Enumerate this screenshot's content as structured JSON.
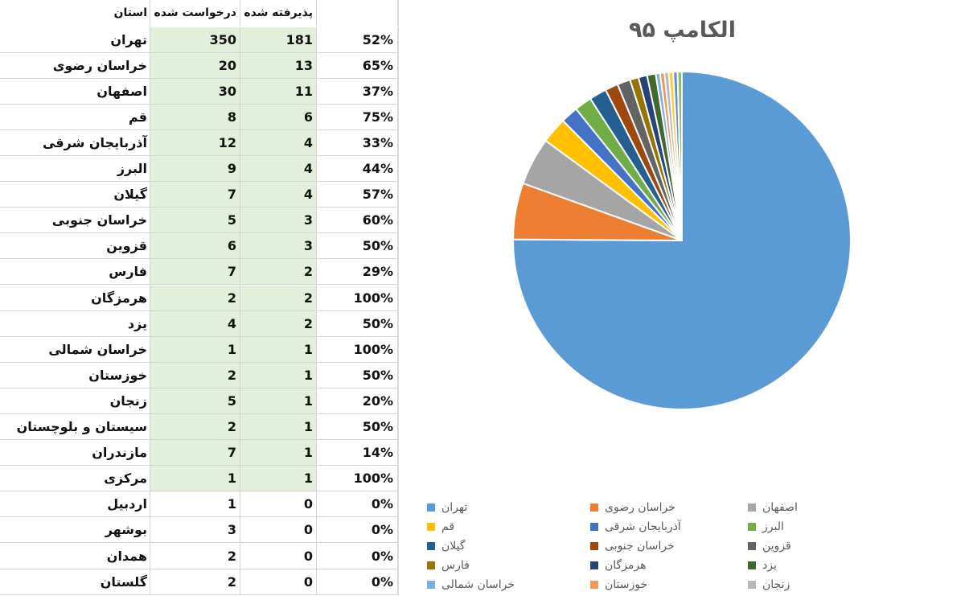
{
  "table": {
    "headers": {
      "province": "استان",
      "requested": "درخواست شده",
      "accepted": "پذیرفته شده",
      "percent": ""
    },
    "rows": [
      {
        "province": "تهران",
        "requested": "350",
        "accepted": "181",
        "percent": "52%"
      },
      {
        "province": "خراسان رضوی",
        "requested": "20",
        "accepted": "13",
        "percent": "65%"
      },
      {
        "province": "اصفهان",
        "requested": "30",
        "accepted": "11",
        "percent": "37%"
      },
      {
        "province": "قم",
        "requested": "8",
        "accepted": "6",
        "percent": "75%"
      },
      {
        "province": "آذربایجان شرقی",
        "requested": "12",
        "accepted": "4",
        "percent": "33%"
      },
      {
        "province": "البرز",
        "requested": "9",
        "accepted": "4",
        "percent": "44%"
      },
      {
        "province": "گیلان",
        "requested": "7",
        "accepted": "4",
        "percent": "57%"
      },
      {
        "province": "خراسان جنوبی",
        "requested": "5",
        "accepted": "3",
        "percent": "60%"
      },
      {
        "province": "قزوین",
        "requested": "6",
        "accepted": "3",
        "percent": "50%"
      },
      {
        "province": "فارس",
        "requested": "7",
        "accepted": "2",
        "percent": "29%"
      },
      {
        "province": "هرمزگان",
        "requested": "2",
        "accepted": "2",
        "percent": "100%"
      },
      {
        "province": "یزد",
        "requested": "4",
        "accepted": "2",
        "percent": "50%"
      },
      {
        "province": "خراسان شمالی",
        "requested": "1",
        "accepted": "1",
        "percent": "100%"
      },
      {
        "province": "خوزستان",
        "requested": "2",
        "accepted": "1",
        "percent": "50%"
      },
      {
        "province": "زنجان",
        "requested": "5",
        "accepted": "1",
        "percent": "20%"
      },
      {
        "province": "سیستان و بلوچستان",
        "requested": "2",
        "accepted": "1",
        "percent": "50%"
      },
      {
        "province": "مازندران",
        "requested": "7",
        "accepted": "1",
        "percent": "14%"
      },
      {
        "province": "مرکزی",
        "requested": "1",
        "accepted": "1",
        "percent": "100%"
      },
      {
        "province": "اردبیل",
        "requested": "1",
        "accepted": "0",
        "percent": "0%"
      },
      {
        "province": "بوشهر",
        "requested": "3",
        "accepted": "0",
        "percent": "0%"
      },
      {
        "province": "همدان",
        "requested": "2",
        "accepted": "0",
        "percent": "0%"
      },
      {
        "province": "گلستان",
        "requested": "2",
        "accepted": "0",
        "percent": "0%"
      }
    ]
  },
  "chart_data": {
    "type": "pie",
    "title": "الکامپ ۹۵",
    "legend_position": "bottom",
    "categories": [
      "تهران",
      "خراسان رضوی",
      "اصفهان",
      "قم",
      "آذربایجان شرقی",
      "البرز",
      "گیلان",
      "خراسان جنوبی",
      "قزوین",
      "فارس",
      "هرمزگان",
      "یزد",
      "خراسان شمالی",
      "خوزستان",
      "زنجان",
      "سیستان و بلوچستان",
      "مازندران",
      "مرکزی"
    ],
    "values": [
      181,
      13,
      11,
      6,
      4,
      4,
      4,
      3,
      3,
      2,
      2,
      2,
      1,
      1,
      1,
      1,
      1,
      1
    ],
    "colors": [
      "#5b9bd5",
      "#ed7d31",
      "#a5a5a5",
      "#ffc000",
      "#4472c4",
      "#70ad47",
      "#255e91",
      "#9e480e",
      "#636363",
      "#997300",
      "#264478",
      "#43682b",
      "#7cafdd",
      "#f1975a",
      "#b7b7b7",
      "#ffcd33",
      "#698ed0",
      "#8cc168"
    ],
    "legend_visible_count": 15
  }
}
